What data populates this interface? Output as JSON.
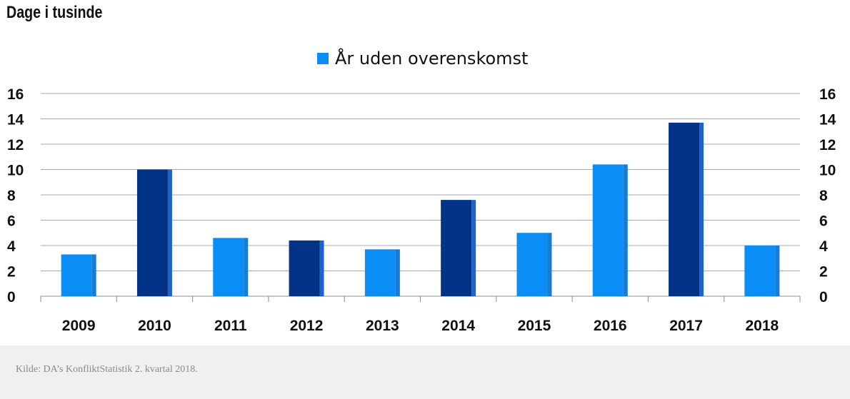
{
  "header": {
    "title": "Dage i tusinde"
  },
  "chart_data": {
    "type": "bar",
    "title": "",
    "xlabel": "",
    "ylabel": "Dage i tusinde",
    "ylim": [
      0,
      16
    ],
    "yticks": [
      0,
      2,
      4,
      6,
      8,
      10,
      12,
      14,
      16
    ],
    "grid": true,
    "legend_position": "top-center",
    "categories": [
      "2009",
      "2010",
      "2011",
      "2012",
      "2013",
      "2014",
      "2015",
      "2016",
      "2017",
      "2018"
    ],
    "series": [
      {
        "name": "År uden overenskomst",
        "values": [
          3.3,
          10.0,
          4.6,
          4.4,
          3.7,
          7.6,
          5.0,
          10.4,
          13.7,
          4.0
        ],
        "color": "#0a8ef5"
      }
    ],
    "bar_colors": [
      "#0a8ef5",
      "#033387",
      "#0a8ef5",
      "#033387",
      "#0a8ef5",
      "#033387",
      "#0a8ef5",
      "#0a8ef5",
      "#033387",
      "#0a8ef5"
    ]
  },
  "footer": {
    "source": "Kilde: DA’s KonfliktStatistik 2. kvartal 2018."
  }
}
